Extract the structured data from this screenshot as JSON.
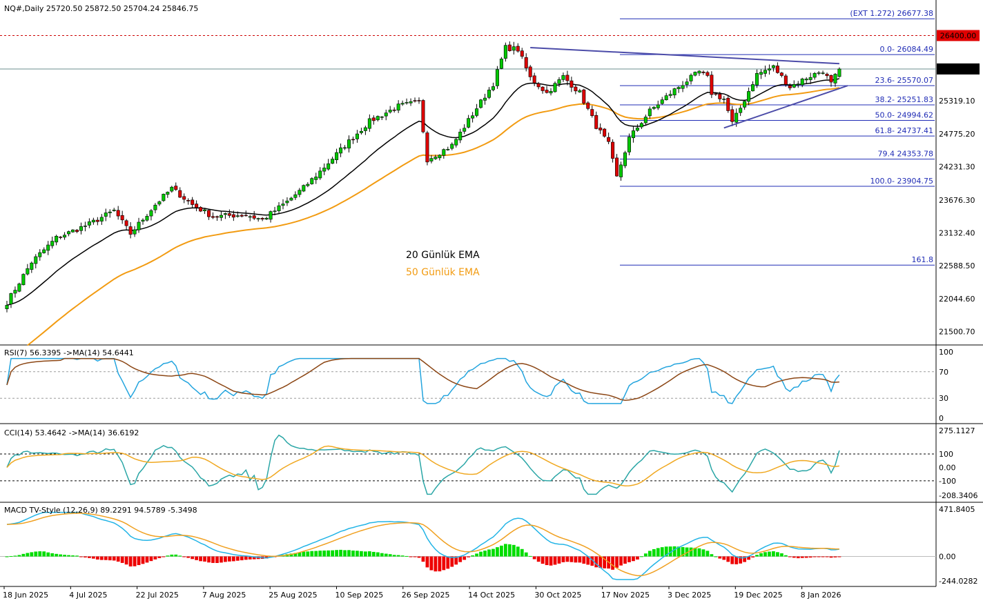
{
  "window": {
    "symbol_info": "NQ#,Daily  25720.50 25872.50 25704.24 25846.75"
  },
  "legend": {
    "ema20": "20 Günlük EMA",
    "ema50": "50 Günlük EMA"
  },
  "colors": {
    "up": "#00c800",
    "down": "#dd0000",
    "ema20": "#000000",
    "ema50": "#f29b11",
    "fib": "#1f2bb5",
    "trend": "#4b4ba8",
    "rsi": "#22a4de",
    "rsi_ma": "#8b4513",
    "cci": "#2aa6a6",
    "cci_ma": "#f0a820",
    "macd": "#22b4e6",
    "signal": "#f0a020",
    "hist_pos": "#00dd00",
    "hist_neg": "#ee0000"
  },
  "chart_data": [
    {
      "type": "candlestick",
      "title": "NQ#,Daily",
      "ohlc_last": {
        "open": 25720.5,
        "high": 25872.5,
        "low": 25704.24,
        "close": 25846.75
      },
      "ylim": [
        21300,
        26760
      ],
      "y_ticks": [
        "26400.00",
        "25846.75",
        "25319.10",
        "24775.20",
        "24231.30",
        "23676.30",
        "23132.40",
        "22588.50",
        "22044.60",
        "21500.70"
      ],
      "x_ticks": [
        "18 Jun 2025",
        "4 Jul 2025",
        "22 Jul 2025",
        "7 Aug 2025",
        "25 Aug 2025",
        "10 Sep 2025",
        "26 Sep 2025",
        "14 Oct 2025",
        "30 Oct 2025",
        "17 Nov 2025",
        "3 Dec 2025",
        "19 Dec 2025",
        "8 Jan 2026"
      ],
      "resistance_level": "26400.00",
      "last_price_label": "25846.75",
      "fib_levels": [
        {
          "label": "(EXT 1.272)  26677.38",
          "value": 26677.38
        },
        {
          "label": "0.0- 26084.49",
          "value": 26084.49
        },
        {
          "label": "23.6- 25570.07",
          "value": 25570.07
        },
        {
          "label": "38.2- 25251.83",
          "value": 25251.83
        },
        {
          "label": "50.0- 24994.62",
          "value": 24994.62
        },
        {
          "label": "61.8- 24737.41",
          "value": 24737.41
        },
        {
          "label": "79.4 24353.78",
          "value": 24353.78
        },
        {
          "label": "100.0- 23904.75",
          "value": 23904.75
        },
        {
          "label": "161.8",
          "value": 22600
        }
      ],
      "close_anchors": [
        [
          0,
          21980
        ],
        [
          6,
          22650
        ],
        [
          12,
          23050
        ],
        [
          20,
          23280
        ],
        [
          26,
          23500
        ],
        [
          30,
          23120
        ],
        [
          36,
          23600
        ],
        [
          40,
          23870
        ],
        [
          45,
          23600
        ],
        [
          50,
          23400
        ],
        [
          54,
          23420
        ],
        [
          58,
          23430
        ],
        [
          62,
          23350
        ],
        [
          68,
          23650
        ],
        [
          72,
          23880
        ],
        [
          76,
          24150
        ],
        [
          82,
          24580
        ],
        [
          88,
          24980
        ],
        [
          95,
          25230
        ],
        [
          100,
          25300
        ],
        [
          102,
          24350
        ],
        [
          108,
          24580
        ],
        [
          114,
          25200
        ],
        [
          118,
          25600
        ],
        [
          121,
          26200
        ],
        [
          124,
          26170
        ],
        [
          127,
          25700
        ],
        [
          131,
          25450
        ],
        [
          135,
          25720
        ],
        [
          139,
          25450
        ],
        [
          143,
          24900
        ],
        [
          146,
          24600
        ],
        [
          148,
          24050
        ],
        [
          151,
          24700
        ],
        [
          156,
          25150
        ],
        [
          162,
          25500
        ],
        [
          168,
          25800
        ],
        [
          170,
          25700
        ],
        [
          171,
          25450
        ],
        [
          174,
          25350
        ],
        [
          176,
          24950
        ],
        [
          178,
          25200
        ],
        [
          182,
          25760
        ],
        [
          186,
          25880
        ],
        [
          190,
          25550
        ],
        [
          194,
          25700
        ],
        [
          198,
          25820
        ],
        [
          200,
          25600
        ],
        [
          202,
          25846.75
        ]
      ],
      "series": [
        {
          "name": "20 Günlük EMA",
          "period": 20
        },
        {
          "name": "50 Günlük EMA",
          "period": 50
        }
      ]
    },
    {
      "type": "line",
      "title": "RSI(7) 56.3395  ->MA(14) 54.6441",
      "ylim": [
        0,
        100
      ],
      "y_ticks": [
        "100",
        "70",
        "30",
        "0"
      ],
      "levels": [
        70,
        30
      ],
      "last": {
        "rsi": 56.3395,
        "ma": 54.6441
      }
    },
    {
      "type": "line",
      "title": "CCI(14) 53.4642  ->MA(14) 36.6192",
      "ylim": [
        -208.3406,
        275.1127
      ],
      "y_ticks": [
        "275.1127",
        "100",
        "0.00",
        "-100",
        "-208.3406"
      ],
      "levels": [
        100,
        -100
      ],
      "last": {
        "cci": 53.4642,
        "ma": 36.6192
      }
    },
    {
      "type": "line",
      "title": "MACD TV-Style (12,26,9) 89.2291 94.5789 -5.3498",
      "ylim": [
        -244.0282,
        471.8405
      ],
      "y_ticks": [
        "471.8405",
        "0.00",
        "-244.0282"
      ],
      "last": {
        "macd": 89.2291,
        "signal": 94.5789,
        "hist": -5.3498
      }
    }
  ]
}
